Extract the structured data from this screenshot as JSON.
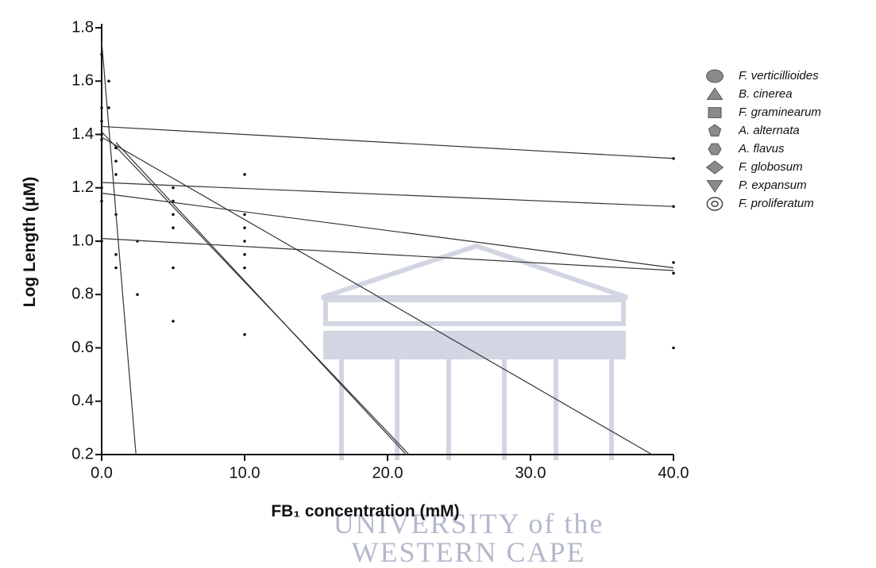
{
  "chart_data": {
    "type": "scatter",
    "xlabel": "FB₁ concentration (mM)",
    "ylabel": "Log Length (μM)",
    "xlim": [
      0,
      40
    ],
    "ylim": [
      0.2,
      1.8
    ],
    "xticks": [
      {
        "value": 0,
        "label": "0.0"
      },
      {
        "value": 10,
        "label": "10.0"
      },
      {
        "value": 20,
        "label": "20.0"
      },
      {
        "value": 30,
        "label": "30.0"
      },
      {
        "value": 40,
        "label": "40.0"
      }
    ],
    "yticks": [
      0.2,
      0.4,
      0.6,
      0.8,
      {
        "value": 1,
        "label": "1.0"
      },
      1.2,
      1.4,
      1.6,
      1.8
    ],
    "watermark": [
      "UNIVERSITY of the",
      "WESTERN CAPE"
    ],
    "series": [
      {
        "name": "F. verticillioides",
        "marker": "circle",
        "color": "#8a8a8a",
        "x": [
          0,
          0.5,
          1,
          10,
          40
        ],
        "values": [
          1.45,
          1.5,
          1.35,
          1.25,
          1.31
        ],
        "fit": {
          "x": [
            0,
            40
          ],
          "values": [
            1.43,
            1.31
          ]
        }
      },
      {
        "name": "B. cinerea",
        "marker": "triangle",
        "color": "#8a8a8a",
        "x": [
          0,
          1,
          5,
          10,
          40
        ],
        "values": [
          1.2,
          1.25,
          1.15,
          1.1,
          1.13
        ],
        "fit": {
          "x": [
            0,
            40
          ],
          "values": [
            1.22,
            1.13
          ]
        }
      },
      {
        "name": "F. graminearum",
        "marker": "square",
        "color": "#8a8a8a",
        "x": [
          0,
          1,
          2.5,
          5,
          10,
          40
        ],
        "values": [
          1.15,
          1.1,
          1.0,
          1.05,
          1.0,
          0.92
        ],
        "fit": {
          "x": [
            0,
            40
          ],
          "values": [
            1.18,
            0.9
          ]
        }
      },
      {
        "name": "A. alternata",
        "marker": "pentagon",
        "color": "#8a8a8a",
        "x": [
          0,
          1,
          5,
          10,
          40
        ],
        "values": [
          1.0,
          0.95,
          0.9,
          0.95,
          0.88
        ],
        "fit": {
          "x": [
            0,
            40
          ],
          "values": [
            1.01,
            0.89
          ]
        }
      },
      {
        "name": "A. flavus",
        "marker": "hexagon",
        "color": "#8a8a8a",
        "x": [
          0,
          1,
          5,
          10,
          40
        ],
        "values": [
          1.4,
          1.35,
          1.2,
          1.05,
          0.6
        ],
        "fit": {
          "x": [
            0,
            38.5
          ],
          "values": [
            1.39,
            0.2
          ]
        }
      },
      {
        "name": "F. globosum",
        "marker": "diamond",
        "color": "#8a8a8a",
        "x": [
          0,
          1,
          5,
          10
        ],
        "values": [
          1.5,
          1.3,
          0.7,
          0.65
        ],
        "fit": {
          "x": [
            0,
            21.5
          ],
          "values": [
            1.41,
            0.2
          ]
        }
      },
      {
        "name": "P. expansum",
        "marker": "triangle-down",
        "color": "#8a8a8a",
        "x": [
          0,
          0.5,
          1,
          2.5
        ],
        "values": [
          1.7,
          1.6,
          0.9,
          0.8
        ],
        "fit": {
          "x": [
            0,
            2.4
          ],
          "values": [
            1.75,
            0.2
          ]
        }
      },
      {
        "name": "F. proliferatum",
        "marker": "target",
        "color": "#8a8a8a",
        "x": [
          0,
          1,
          5,
          10
        ],
        "values": [
          1.38,
          1.35,
          1.1,
          0.9
        ],
        "fit": {
          "x": [
            1,
            21.3
          ],
          "values": [
            1.37,
            0.2
          ]
        }
      }
    ]
  }
}
